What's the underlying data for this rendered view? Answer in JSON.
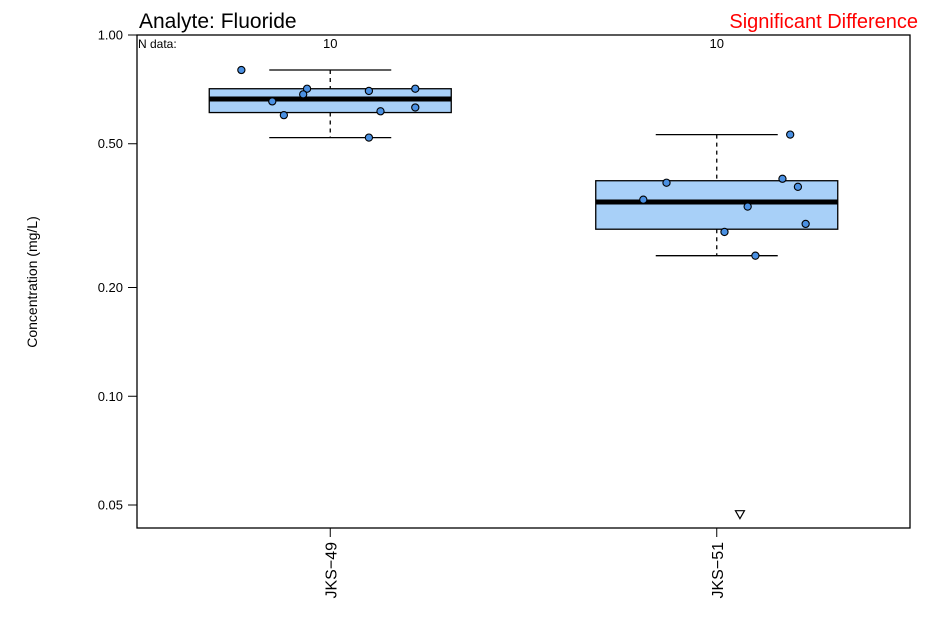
{
  "chart_data": {
    "type": "boxplot",
    "title": "Analyte: Fluoride",
    "annotation": "Significant Difference",
    "annotation_color": "#ff0000",
    "n_label": "N data:",
    "ylabel": "Concentration (mg/L)",
    "yscale": "log",
    "ylim": [
      0.042,
      1.0
    ],
    "yticks": [
      {
        "value": 1.0,
        "label": "1.00"
      },
      {
        "value": 0.5,
        "label": "0.50"
      },
      {
        "value": 0.2,
        "label": "0.20"
      },
      {
        "value": 0.1,
        "label": "0.10"
      },
      {
        "value": 0.05,
        "label": "0.05"
      }
    ],
    "box_fill": "#a8d0f8",
    "point_color": "#4a90e2",
    "groups": [
      {
        "label": "JKS−49",
        "n": "10",
        "whisker_low": 0.52,
        "q1": 0.61,
        "median": 0.665,
        "q3": 0.71,
        "whisker_high": 0.8,
        "points": [
          {
            "y": 0.8,
            "dx": -0.23
          },
          {
            "y": 0.71,
            "dx": -0.06
          },
          {
            "y": 0.7,
            "dx": 0.1
          },
          {
            "y": 0.71,
            "dx": 0.22
          },
          {
            "y": 0.685,
            "dx": -0.07
          },
          {
            "y": 0.655,
            "dx": -0.15
          },
          {
            "y": 0.63,
            "dx": 0.22
          },
          {
            "y": 0.615,
            "dx": 0.13
          },
          {
            "y": 0.6,
            "dx": -0.12
          },
          {
            "y": 0.52,
            "dx": 0.1
          }
        ],
        "nondetects": []
      },
      {
        "label": "JKS−51",
        "n": "10",
        "whisker_low": 0.245,
        "q1": 0.29,
        "median": 0.345,
        "q3": 0.395,
        "whisker_high": 0.53,
        "points": [
          {
            "y": 0.53,
            "dx": 0.19
          },
          {
            "y": 0.4,
            "dx": 0.17
          },
          {
            "y": 0.39,
            "dx": -0.13
          },
          {
            "y": 0.38,
            "dx": 0.21
          },
          {
            "y": 0.35,
            "dx": -0.19
          },
          {
            "y": 0.335,
            "dx": 0.08
          },
          {
            "y": 0.3,
            "dx": 0.23
          },
          {
            "y": 0.285,
            "dx": 0.02
          },
          {
            "y": 0.245,
            "dx": 0.1
          }
        ],
        "nondetects": [
          {
            "y": 0.047,
            "dx": 0.06
          }
        ]
      }
    ]
  }
}
